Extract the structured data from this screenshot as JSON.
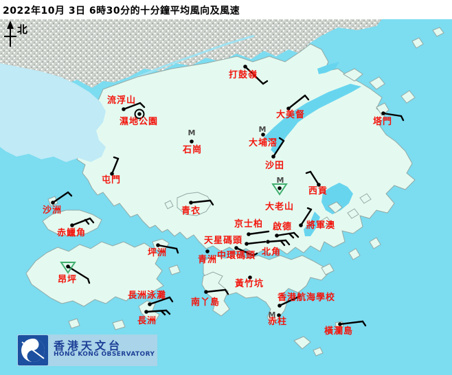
{
  "title": "2022年10月 3日 6時30分的十分鐘平均風向及風速",
  "compass": {
    "label": "北"
  },
  "banner": {
    "cn": "香港天文台",
    "en": "HONG KONG OBSERVATORY"
  },
  "colors": {
    "sea": "#7cdcf0",
    "deepbay": "#bfeaf6",
    "bay": "#68d5ef",
    "land": "#e4faf0",
    "urban": "#cdd2cd",
    "river": "#9fe3f2",
    "label_red": "#f2150d",
    "marker_green": "#3fae6e",
    "marker_gray": "#4a4a4a",
    "barb_black": "#000000",
    "banner_bg": "#a9d4e9",
    "banner_text": "#1e3f97",
    "logo_blue": "#1c4f9f"
  },
  "stations": [
    {
      "id": "lau-fau-shan",
      "name": "流浮山",
      "label": [
        156,
        140
      ],
      "dot": [
        180,
        159
      ],
      "lines": [
        [
          180,
          159,
          204,
          150
        ],
        [
          204,
          150,
          210,
          156
        ]
      ]
    },
    {
      "id": "wetland-park",
      "name": "濕地公園",
      "label": [
        174,
        171
      ],
      "dot": [
        203,
        166
      ],
      "ring": true
    },
    {
      "id": "ta-kwu-ling",
      "name": "打鼓嶺",
      "label": [
        333,
        103
      ],
      "dot": [
        357,
        97
      ],
      "lines": [
        [
          357,
          97,
          383,
          122
        ],
        [
          383,
          122,
          389,
          118
        ]
      ]
    },
    {
      "id": "tai-mei-tuk",
      "name": "大美督",
      "label": [
        402,
        161
      ],
      "dot": [
        420,
        158
      ],
      "lines": [
        [
          420,
          158,
          444,
          139
        ],
        [
          444,
          139,
          449,
          145
        ]
      ]
    },
    {
      "id": "tap-mun",
      "name": "塔門",
      "label": [
        543,
        171
      ],
      "dot": [
        558,
        165
      ],
      "lines": [
        [
          558,
          165,
          584,
          169
        ],
        [
          584,
          169,
          587,
          175
        ]
      ]
    },
    {
      "id": "shek-kong",
      "name": "石崗",
      "label": [
        266,
        212
      ],
      "dot": [
        279,
        206
      ],
      "m": [
        279,
        193
      ]
    },
    {
      "id": "tai-po-kau",
      "name": "大埔滘",
      "label": [
        362,
        202
      ],
      "dot": [
        383,
        196
      ],
      "m": [
        382,
        188
      ]
    },
    {
      "id": "sha-tin",
      "name": "沙田",
      "label": [
        386,
        235
      ],
      "dot": [
        398,
        228
      ],
      "lines": [
        [
          398,
          228,
          413,
          205
        ],
        [
          413,
          205,
          407,
          201
        ]
      ]
    },
    {
      "id": "sai-kung",
      "name": "西貢",
      "label": [
        449,
        272
      ],
      "dot": [
        464,
        269
      ],
      "lines": [
        [
          464,
          269,
          452,
          250
        ],
        [
          452,
          250,
          446,
          252
        ]
      ]
    },
    {
      "id": "tates-cairn",
      "name": "大老山",
      "label": [
        386,
        295
      ],
      "dot": [
        407,
        274
      ],
      "m": [
        408,
        262
      ],
      "tri": [
        407,
        268
      ]
    },
    {
      "id": "tseung-kwan-o",
      "name": "將軍澳",
      "label": [
        446,
        322
      ],
      "dot": [
        438,
        328
      ],
      "lines": [
        [
          438,
          328,
          453,
          305
        ],
        [
          453,
          305,
          448,
          303
        ]
      ]
    },
    {
      "id": "kings-park",
      "name": "京士柏",
      "label": [
        341,
        320
      ],
      "dot": [
        362,
        341
      ],
      "lines": [
        [
          362,
          341,
          391,
          337
        ]
      ]
    },
    {
      "id": "kai-tak",
      "name": "啟德",
      "label": [
        397,
        324
      ],
      "dot": [
        403,
        343
      ],
      "lines": [
        [
          403,
          343,
          428,
          339
        ],
        [
          428,
          339,
          434,
          345
        ],
        [
          421,
          340,
          427,
          346
        ]
      ]
    },
    {
      "id": "star-ferry-pier",
      "name": "天星碼頭",
      "label": [
        297,
        344
      ],
      "dot": [
        359,
        355
      ],
      "lines": [
        [
          359,
          355,
          386,
          352
        ]
      ]
    },
    {
      "id": "north-point",
      "name": "北角",
      "label": [
        381,
        361
      ],
      "dot": [
        390,
        352
      ],
      "lines": [
        [
          390,
          352,
          416,
          350
        ],
        [
          416,
          350,
          421,
          356
        ],
        [
          409,
          351,
          414,
          357
        ]
      ]
    },
    {
      "id": "central-pier",
      "name": "中環碼頭",
      "label": [
        316,
        366
      ],
      "dot": [
        344,
        361
      ],
      "lines": [
        [
          344,
          361,
          369,
          372
        ],
        [
          369,
          372,
          374,
          369
        ]
      ]
    },
    {
      "id": "green-island",
      "name": "青洲",
      "label": [
        288,
        372
      ],
      "dot": [
        302,
        366
      ]
    },
    {
      "id": "tsing-yi",
      "name": "青衣",
      "label": [
        264,
        301
      ],
      "dot": [
        278,
        295
      ],
      "lines": [
        [
          278,
          295,
          306,
          292
        ],
        [
          306,
          292,
          310,
          298
        ]
      ]
    },
    {
      "id": "peng-chau",
      "name": "坪洲",
      "label": [
        215,
        362
      ],
      "dot": [
        230,
        357
      ],
      "lines": [
        [
          230,
          357,
          257,
          362
        ],
        [
          257,
          362,
          259,
          368
        ]
      ]
    },
    {
      "id": "chek-lap-kok",
      "name": "赤鱲角",
      "label": [
        83,
        333
      ],
      "dot": [
        105,
        328
      ],
      "lines": [
        [
          105,
          328,
          131,
          318
        ],
        [
          131,
          318,
          136,
          324
        ],
        [
          124,
          320,
          129,
          326
        ]
      ]
    },
    {
      "id": "sha-chau",
      "name": "沙洲",
      "label": [
        62,
        300
      ],
      "dot": [
        77,
        295
      ],
      "lines": [
        [
          77,
          295,
          99,
          280
        ],
        [
          99,
          280,
          104,
          285
        ]
      ]
    },
    {
      "id": "tuen-mun",
      "name": "屯門",
      "label": [
        148,
        256
      ],
      "dot": [
        163,
        253
      ],
      "lines": [
        [
          163,
          253,
          172,
          231
        ],
        [
          172,
          231,
          166,
          229
        ]
      ]
    },
    {
      "id": "ngong-ping",
      "name": "昂坪",
      "label": [
        84,
        401
      ],
      "dot": [
        99,
        388
      ],
      "tri": [
        99,
        382
      ],
      "lines": [
        [
          99,
          388,
          128,
          406
        ],
        [
          128,
          406,
          130,
          412
        ]
      ]
    },
    {
      "id": "wong-chuk-hang",
      "name": "黃竹坑",
      "label": [
        342,
        407
      ],
      "dot": [
        364,
        404
      ]
    },
    {
      "id": "lamma-island",
      "name": "南丫島",
      "label": [
        278,
        434
      ],
      "dot": [
        300,
        425
      ],
      "lines": [
        [
          300,
          425,
          328,
          422
        ],
        [
          328,
          422,
          332,
          428
        ]
      ]
    },
    {
      "id": "cheung-chau-beach",
      "name": "長洲泳灘",
      "label": [
        186,
        424
      ],
      "dot": [
        218,
        443
      ],
      "lines": [
        [
          218,
          443,
          247,
          433
        ],
        [
          247,
          433,
          251,
          439
        ]
      ]
    },
    {
      "id": "cheung-chau",
      "name": "長洲",
      "label": [
        200,
        461
      ],
      "dot": [
        213,
        454
      ],
      "lines": [
        [
          213,
          454,
          242,
          452
        ],
        [
          242,
          452,
          247,
          457
        ],
        [
          235,
          453,
          240,
          458
        ]
      ]
    },
    {
      "id": "hk-sea-school",
      "name": "香港航海學校",
      "label": [
        404,
        427
      ],
      "dot": [
        407,
        445
      ],
      "lines": [
        [
          407,
          445,
          437,
          431
        ]
      ]
    },
    {
      "id": "stanley",
      "name": "赤柱",
      "label": [
        390,
        462
      ],
      "dot": [
        406,
        459
      ],
      "m": [
        396,
        458
      ]
    },
    {
      "id": "waglan-island",
      "name": "橫瀾島",
      "label": [
        472,
        476
      ],
      "dot": [
        495,
        472
      ],
      "lines": [
        [
          495,
          472,
          528,
          468
        ],
        [
          528,
          468,
          532,
          474
        ]
      ]
    }
  ]
}
